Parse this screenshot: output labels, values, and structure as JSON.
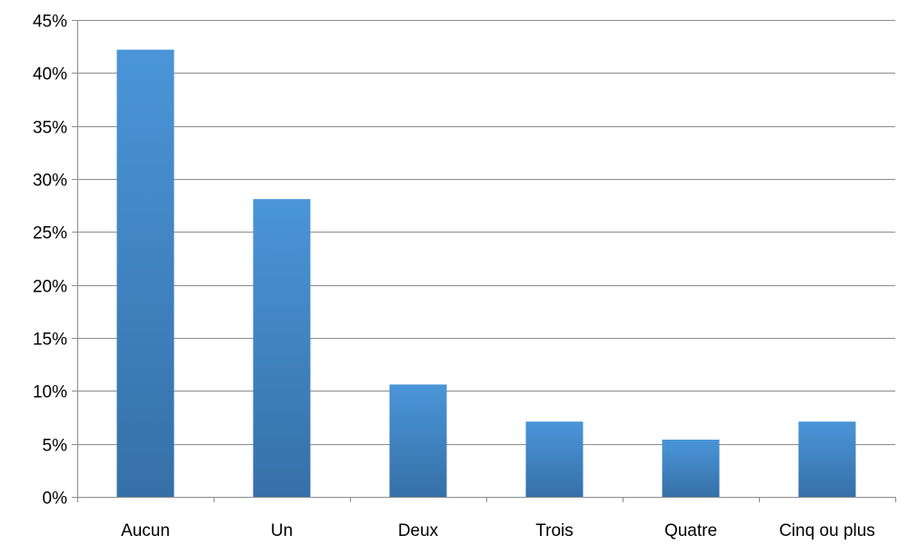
{
  "chart_data": {
    "type": "bar",
    "title": "",
    "xlabel": "",
    "ylabel": "",
    "categories": [
      "Aucun",
      "Un",
      "Deux",
      "Trois",
      "Quatre",
      "Cinq ou plus"
    ],
    "values": [
      42.2,
      28.1,
      10.6,
      7.1,
      5.4,
      7.1
    ],
    "unit": "%",
    "ylim": [
      0,
      45
    ],
    "yticks": [
      0,
      5,
      10,
      15,
      20,
      25,
      30,
      35,
      40,
      45
    ],
    "ytick_labels": [
      "0%",
      "5%",
      "10%",
      "15%",
      "20%",
      "25%",
      "30%",
      "35%",
      "40%",
      "45%"
    ],
    "grid": true,
    "legend": "none",
    "colors": {
      "bar_top": "#4a95d8",
      "bar_bottom": "#3670a8",
      "grid": "#8c8c8c"
    }
  }
}
